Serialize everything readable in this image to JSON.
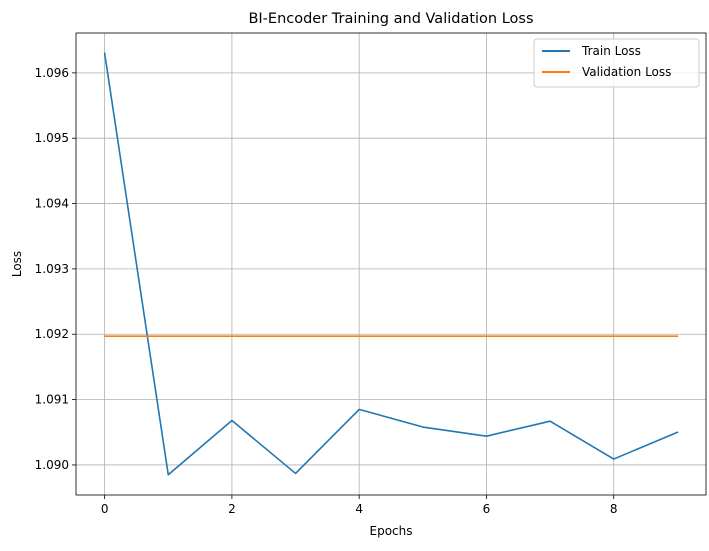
{
  "chart_data": {
    "type": "line",
    "title": "BI-Encoder Training and Validation Loss",
    "xlabel": "Epochs",
    "ylabel": "Loss",
    "x": [
      0,
      1,
      2,
      3,
      4,
      5,
      6,
      7,
      8,
      9
    ],
    "xlim": [
      -0.45,
      9.45
    ],
    "ylim": [
      1.08954,
      1.09661
    ],
    "xticks": [
      0,
      2,
      4,
      6,
      8
    ],
    "xtick_labels": [
      "0",
      "2",
      "4",
      "6",
      "8"
    ],
    "yticks": [
      1.09,
      1.091,
      1.092,
      1.093,
      1.094,
      1.095,
      1.096
    ],
    "ytick_labels": [
      "1.090",
      "1.091",
      "1.092",
      "1.093",
      "1.094",
      "1.095",
      "1.096"
    ],
    "grid": true,
    "legend_position": "top-right",
    "series": [
      {
        "name": "Train Loss",
        "color": "#1f77b4",
        "values": [
          1.0963,
          1.08985,
          1.09068,
          1.08987,
          1.09085,
          1.09058,
          1.09044,
          1.09067,
          1.09009,
          1.0905
        ]
      },
      {
        "name": "Validation Loss",
        "color": "#ff7f0e",
        "values": [
          1.09197,
          1.09197,
          1.09197,
          1.09197,
          1.09197,
          1.09197,
          1.09197,
          1.09197,
          1.09197,
          1.09197
        ]
      }
    ]
  }
}
